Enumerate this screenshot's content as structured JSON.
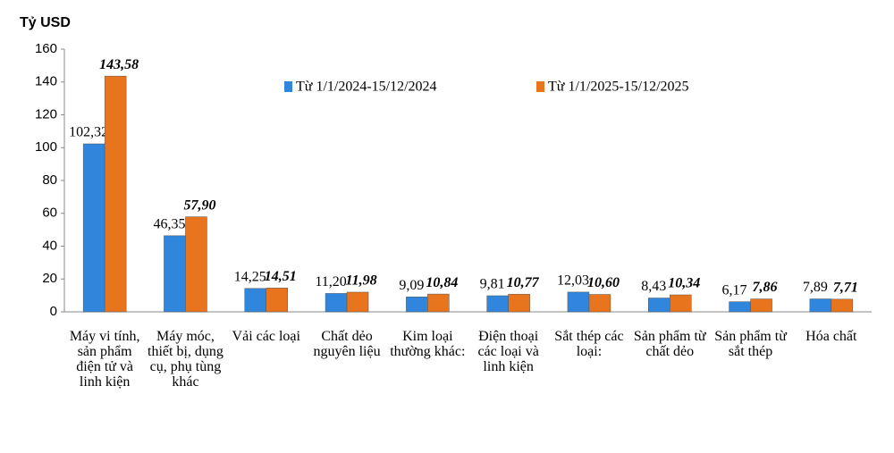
{
  "chart_data": {
    "type": "bar",
    "y_label": "Tỷ USD",
    "categories": [
      "Máy vi tính, sản phẩm điện tử và linh kiện",
      "Máy móc, thiết bị, dụng cụ, phụ tùng khác",
      "Vải các loại",
      "Chất dẻo nguyên liệu",
      "Kim loại thường khác:",
      "Điện thoại các loại và linh kiện",
      "Sắt thép các loại:",
      "Sản phẩm từ chất dẻo",
      "Sản phẩm từ sắt thép",
      "Hóa chất"
    ],
    "series": [
      {
        "name": "Từ 1/1/2024-15/12/2024",
        "color": "#2f86dc",
        "values": [
          102.32,
          46.35,
          14.25,
          11.2,
          9.09,
          9.81,
          12.03,
          8.43,
          6.17,
          7.89
        ],
        "value_labels": [
          "102,32",
          "46,35",
          "14,25",
          "11,20",
          "9,09",
          "9,81",
          "12,03",
          "8,43",
          "6,17",
          "7,89"
        ]
      },
      {
        "name": "Từ 1/1/2025-15/12/2025",
        "color": "#e8751e",
        "values": [
          143.58,
          57.9,
          14.51,
          11.98,
          10.84,
          10.77,
          10.6,
          10.34,
          7.86,
          7.71
        ],
        "value_labels": [
          "143,58",
          "57,90",
          "14,51",
          "11,98",
          "10,84",
          "10,77",
          "10,60",
          "10,34",
          "7,86",
          "7,71"
        ]
      }
    ],
    "ylim": [
      0,
      160
    ],
    "yticks": [
      0,
      20,
      40,
      60,
      80,
      100,
      120,
      140,
      160
    ],
    "grid": false,
    "legend": "top"
  }
}
